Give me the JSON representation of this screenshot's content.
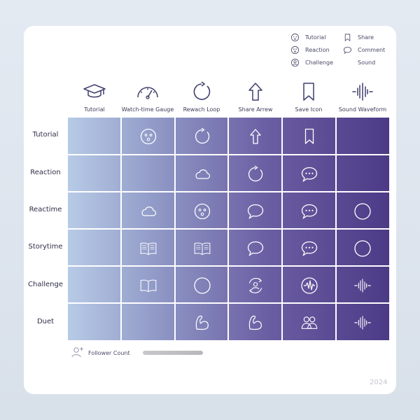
{
  "legend": [
    {
      "icon": "surprised-face-icon",
      "label": "Tutorial"
    },
    {
      "icon": "bookmark-icon",
      "label": "Share"
    },
    {
      "icon": "dizzy-face-icon",
      "label": "Reaction"
    },
    {
      "icon": "speech-bubble-icon",
      "label": "Comment"
    },
    {
      "icon": "person-icon",
      "label": "Challenge"
    },
    {
      "icon": "none",
      "label": "Sound"
    }
  ],
  "columns": [
    {
      "icon": "graduation-cap-icon",
      "label": "Tutorial"
    },
    {
      "icon": "gauge-icon",
      "label": "Watch-time Gauge"
    },
    {
      "icon": "loop-icon",
      "label": "Rewach Loop"
    },
    {
      "icon": "arrow-up-icon",
      "label": "Share Arrew"
    },
    {
      "icon": "bookmark-icon",
      "label": "Save Icon"
    },
    {
      "icon": "waveform-icon",
      "label": "Sound Waveform"
    }
  ],
  "rows": [
    {
      "label": "Tutorial",
      "cells": [
        "",
        "face",
        "loop",
        "arrow",
        "bookmark",
        ""
      ]
    },
    {
      "label": "Reaction",
      "cells": [
        "",
        "",
        "cloud",
        "loop",
        "chat",
        ""
      ]
    },
    {
      "label": "Reactime",
      "cells": [
        "",
        "cloud",
        "face",
        "bubble",
        "chat",
        "circle"
      ]
    },
    {
      "label": "Storytime",
      "cells": [
        "",
        "book",
        "book",
        "bubble",
        "chat",
        "circle"
      ]
    },
    {
      "label": "Challenge",
      "cells": [
        "",
        "book-open",
        "circle",
        "person-loop",
        "pulse",
        "waveform"
      ]
    },
    {
      "label": "Duet",
      "cells": [
        "",
        "",
        "flex",
        "flex",
        "people",
        "waveform"
      ]
    }
  ],
  "footer": {
    "label": "Follower Count",
    "progress": 1.0,
    "year": "2024"
  }
}
